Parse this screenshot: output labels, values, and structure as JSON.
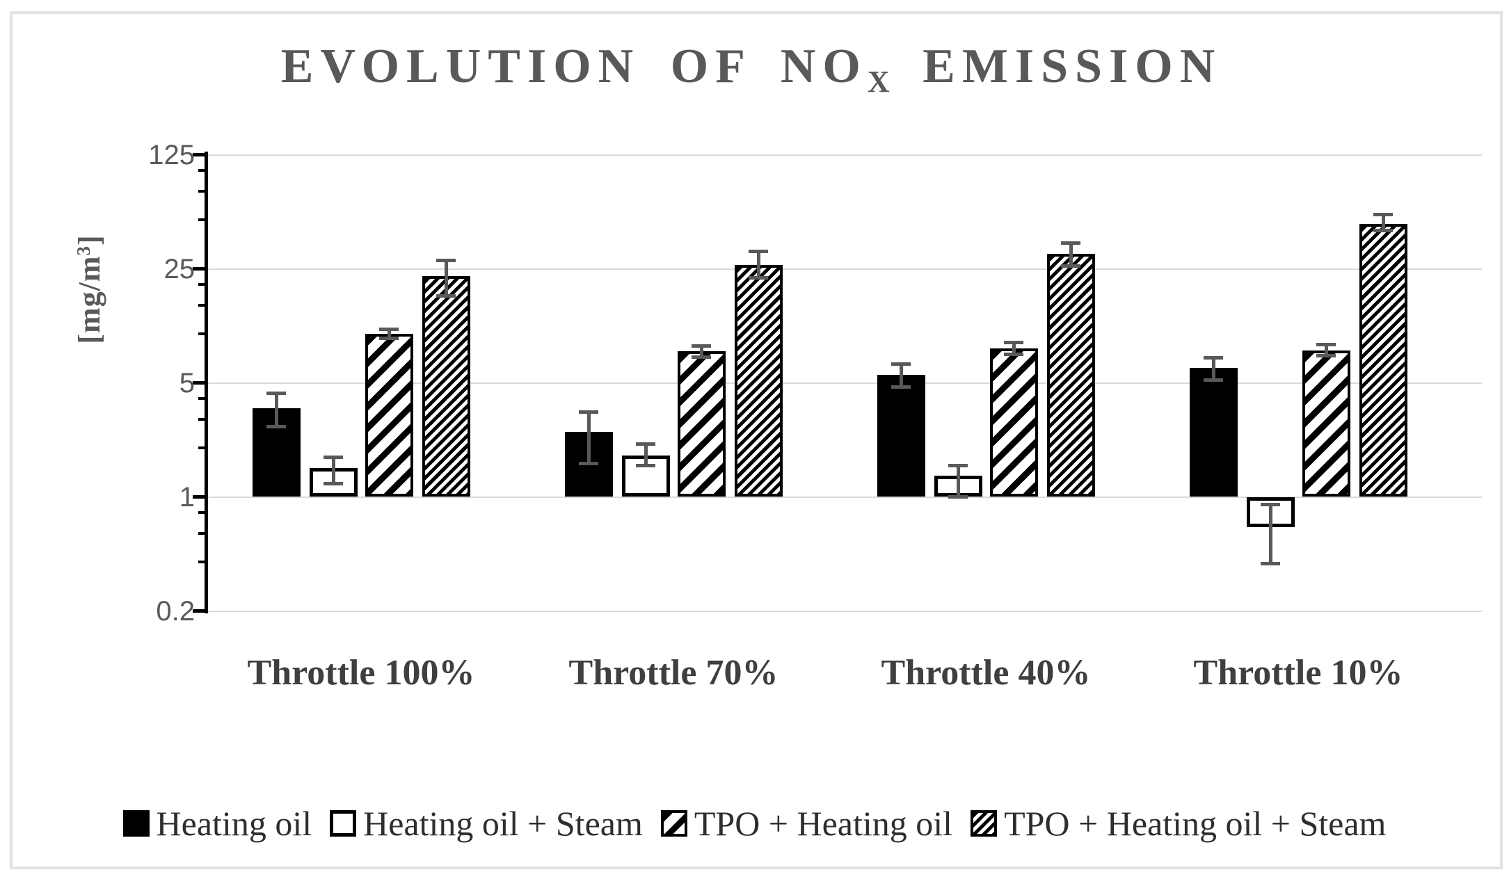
{
  "chart_data": {
    "type": "bar",
    "title": "EVOLUTION OF NOX EMISSION",
    "ylabel": "[mg/m3]",
    "xlabel": "",
    "y_scale": "log base 5",
    "y_ticks": [
      125,
      25,
      5,
      1,
      0.2
    ],
    "y_minor_ticks": [
      100,
      75,
      50,
      20,
      15,
      10,
      4,
      3,
      2,
      0.8,
      0.6,
      0.4
    ],
    "ylim": [
      0.2,
      125
    ],
    "bar_baseline": 1,
    "grid": true,
    "legend_position": "bottom",
    "categories": [
      "Throttle 100%",
      "Throttle 70%",
      "Throttle 40%",
      "Throttle 10%"
    ],
    "series": [
      {
        "name": "Heating oil",
        "pattern": "solid-black",
        "values": [
          3.5,
          2.5,
          5.6,
          6.2
        ],
        "err_lo": [
          2.7,
          1.6,
          4.7,
          5.2
        ],
        "err_hi": [
          4.3,
          3.3,
          6.5,
          7.1
        ]
      },
      {
        "name": "Heating oil + Steam",
        "pattern": "white-outline",
        "values": [
          1.5,
          1.8,
          1.35,
          0.65
        ],
        "err_lo": [
          1.2,
          1.55,
          1.0,
          0.39
        ],
        "err_hi": [
          1.75,
          2.1,
          1.55,
          0.9
        ]
      },
      {
        "name": "TPO + Heating oil",
        "pattern": "wide-upward-diagonal-hatch",
        "values": [
          10,
          7.8,
          8.1,
          7.9
        ],
        "err_lo": [
          9.4,
          7.2,
          7.5,
          7.3
        ],
        "err_hi": [
          10.6,
          8.4,
          8.8,
          8.6
        ]
      },
      {
        "name": "TPO + Heating oil + Steam",
        "pattern": "dense-upward-diagonal-hatch",
        "values": [
          22.5,
          26.5,
          31,
          47
        ],
        "err_lo": [
          17,
          22,
          26,
          43
        ],
        "err_hi": [
          28,
          32,
          36,
          54
        ]
      }
    ]
  },
  "title_parts": {
    "part1": "EVOLUTION OF NO",
    "sub": "X",
    "part2": " EMISSION"
  },
  "y_axis_label_parts": {
    "pre": "[mg/m",
    "sup": "3",
    "post": "]"
  },
  "tick_labels": [
    "125",
    "25",
    "5",
    "1",
    "0.2"
  ],
  "colors": {
    "title": "#595959",
    "tick_label": "#595959",
    "category_label": "#3f3f3f",
    "legend_label": "#2e2e2e",
    "gridline": "#d9d9d9",
    "error_bar": "#595959",
    "bar_black": "#000000",
    "figure_border": "#e2e2e2"
  }
}
